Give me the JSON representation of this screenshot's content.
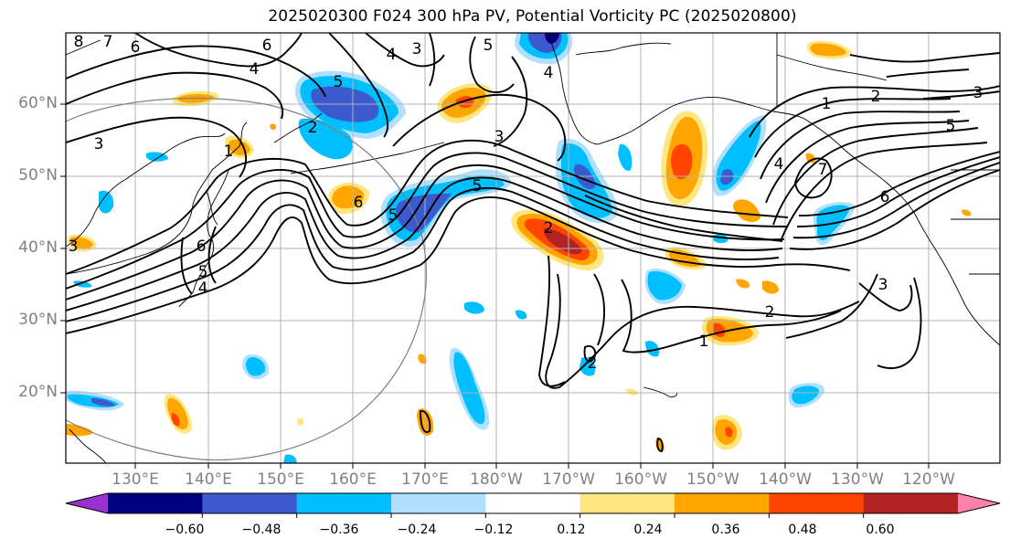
{
  "title": "2025020300 F024 300 hPa PV, Potential Vorticity PC (2025020800)",
  "lat_labels": [
    "60°N",
    "50°N",
    "40°N",
    "30°N",
    "20°N"
  ],
  "lon_labels": [
    "130°E",
    "140°E",
    "150°E",
    "160°E",
    "170°E",
    "180°W",
    "170°W",
    "160°W",
    "150°W",
    "140°W",
    "130°W",
    "120°W"
  ],
  "colorbar": {
    "ticks": [
      "−0.60",
      "−0.48",
      "−0.36",
      "−0.24",
      "−0.12",
      "0.12",
      "0.24",
      "0.36",
      "0.48",
      "0.60"
    ],
    "colors": [
      "#9932cc",
      "#000080",
      "#3a5acd",
      "#00bfff",
      "#b0e0ff",
      "#ffffff",
      "#ffe680",
      "#ffa500",
      "#ff4500",
      "#b22222",
      "#ff82ab"
    ]
  },
  "contour_labels": [
    "8",
    "7",
    "6",
    "6",
    "4",
    "3",
    "5",
    "4",
    "5",
    "3",
    "2",
    "5",
    "4",
    "3",
    "1",
    "2",
    "3",
    "5",
    "4",
    "6",
    "7",
    "1",
    "5",
    "6",
    "2",
    "3",
    "3",
    "2",
    "2",
    "6",
    "4",
    "5",
    "1"
  ]
}
